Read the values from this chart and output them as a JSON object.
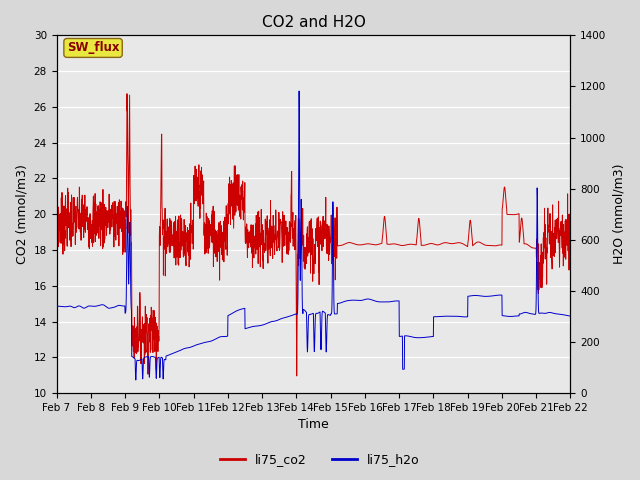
{
  "title": "CO2 and H2O",
  "xlabel": "Time",
  "ylabel_left": "CO2 (mmol/m3)",
  "ylabel_right": "H2O (mmol/m3)",
  "ylim_left": [
    10,
    30
  ],
  "ylim_right": [
    0,
    1400
  ],
  "yticks_left": [
    10,
    12,
    14,
    16,
    18,
    20,
    22,
    24,
    26,
    28,
    30
  ],
  "yticks_right": [
    0,
    200,
    400,
    600,
    800,
    1000,
    1200,
    1400
  ],
  "xtick_labels": [
    "Feb 7",
    "Feb 8",
    "Feb 9",
    "Feb 10",
    "Feb 11",
    "Feb 12",
    "Feb 13",
    "Feb 14",
    "Feb 15",
    "Feb 16",
    "Feb 17",
    "Feb 18",
    "Feb 19",
    "Feb 20",
    "Feb 21",
    "Feb 22"
  ],
  "color_co2": "#cc0000",
  "color_h2o": "#0000cc",
  "legend_label_co2": "li75_co2",
  "legend_label_h2o": "li75_h2o",
  "annotation_text": "SW_flux",
  "background_color": "#e8e8e8",
  "grid_color": "#ffffff",
  "title_fontsize": 11,
  "axis_fontsize": 9,
  "tick_fontsize": 7.5
}
